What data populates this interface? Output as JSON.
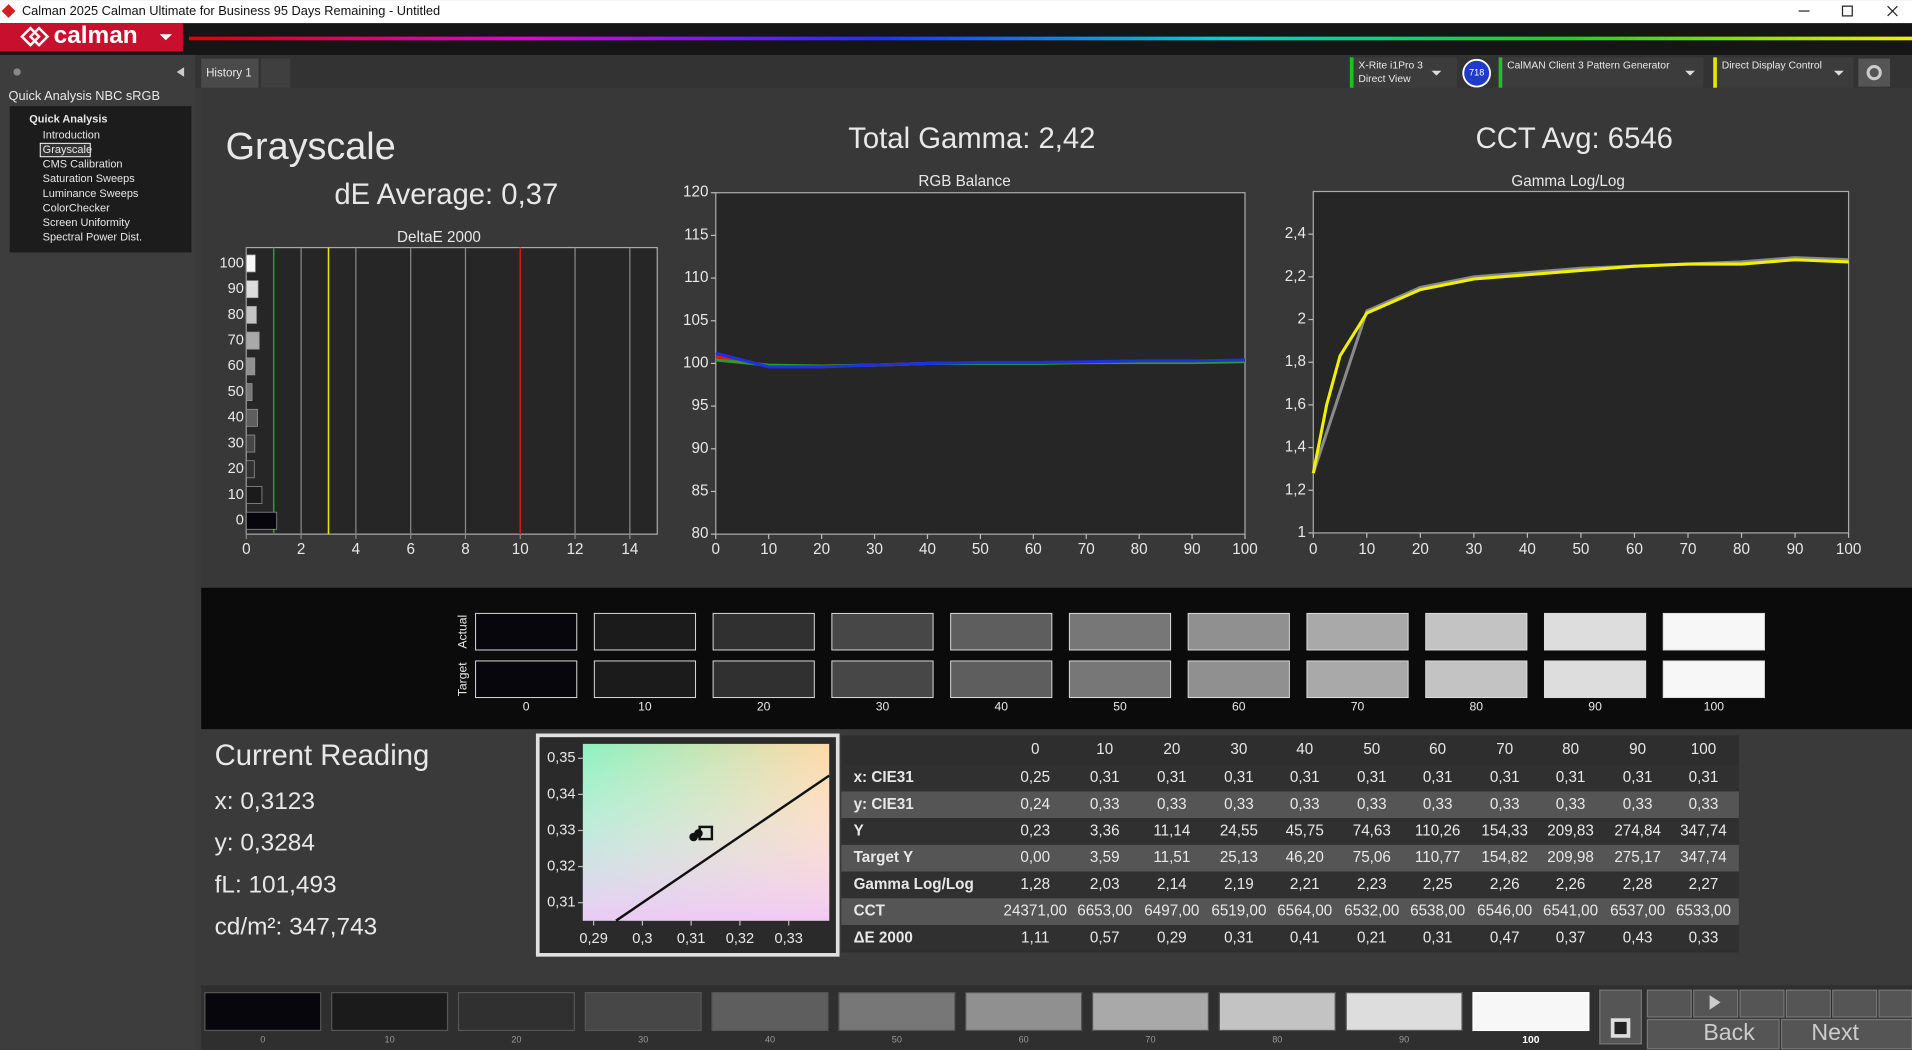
{
  "window": {
    "title": "Calman 2025 Calman Ultimate for Business 95 Days Remaining  - Untitled"
  },
  "toolbar": {
    "logo": "calman",
    "tab": "History 1",
    "meter": [
      "X-Rite i1Pro 3",
      "Direct View"
    ],
    "meter_badge": "718",
    "source": "CalMAN Client 3 Pattern Generator",
    "display": "Direct Display Control"
  },
  "sidebar": {
    "title": "Quick Analysis NBC sRGB",
    "group": "Quick Analysis",
    "items": [
      "Introduction",
      "Grayscale",
      "CMS Calibration",
      "Saturation Sweeps",
      "Luminance Sweeps",
      "ColorChecker",
      "Screen Uniformity",
      "Spectral Power Dist."
    ],
    "selected": 1
  },
  "header": {
    "title": "Grayscale",
    "de_average": "dE Average: 0,37",
    "total_gamma": "Total Gamma: 2,42",
    "cct_avg": "CCT Avg: 6546"
  },
  "charts": {
    "deltae": {
      "type": "hbar",
      "title": "DeltaE 2000",
      "categories": [
        "0",
        "10",
        "20",
        "30",
        "40",
        "50",
        "60",
        "70",
        "80",
        "90",
        "100"
      ],
      "values": [
        1.11,
        0.57,
        0.29,
        0.31,
        0.41,
        0.21,
        0.31,
        0.47,
        0.37,
        0.43,
        0.33
      ],
      "xlim": [
        0,
        15
      ],
      "xticks": [
        0,
        2,
        4,
        6,
        8,
        10,
        12,
        14
      ],
      "grid": true,
      "thresholds": [
        {
          "value": 1,
          "color": "#22a022"
        },
        {
          "value": 3,
          "color": "#e6e600"
        },
        {
          "value": 10,
          "color": "#d01818"
        }
      ]
    },
    "rgb_balance": {
      "type": "line",
      "title": "RGB Balance",
      "x": [
        0,
        10,
        20,
        30,
        40,
        50,
        60,
        70,
        80,
        90,
        100
      ],
      "xlim": [
        0,
        100
      ],
      "ylim": [
        80,
        120
      ],
      "xticks": [
        0,
        10,
        20,
        30,
        40,
        50,
        60,
        70,
        80,
        90,
        100
      ],
      "yticks": [
        80,
        85,
        90,
        95,
        100,
        105,
        110,
        115,
        120
      ],
      "grid": false,
      "series": [
        {
          "name": "Red",
          "color": "#d02020",
          "values": [
            100.8,
            99.7,
            99.7,
            99.8,
            100,
            100,
            100.1,
            100.1,
            100.2,
            100.2,
            100.3
          ]
        },
        {
          "name": "Green",
          "color": "#2a9a2a",
          "values": [
            100.4,
            99.8,
            99.7,
            99.8,
            100,
            100,
            100,
            100.1,
            100.1,
            100.1,
            100.2
          ]
        },
        {
          "name": "Blue",
          "color": "#2030e0",
          "values": [
            101.2,
            99.6,
            99.6,
            99.8,
            100,
            100.1,
            100.1,
            100.2,
            100.3,
            100.3,
            100.4
          ]
        }
      ]
    },
    "gamma": {
      "type": "line",
      "title": "Gamma Log/Log",
      "x": [
        0,
        2.5,
        5,
        10,
        20,
        30,
        40,
        50,
        60,
        70,
        80,
        90,
        100
      ],
      "xlim": [
        0,
        100
      ],
      "ylim": [
        1,
        2.6
      ],
      "xticks": [
        0,
        10,
        20,
        30,
        40,
        50,
        60,
        70,
        80,
        90,
        100
      ],
      "yticks": [
        1,
        {
          "value": 1.2,
          "label": "1,2"
        },
        {
          "value": 1.4,
          "label": "1,4"
        },
        {
          "value": 1.6,
          "label": "1,6"
        },
        {
          "value": 1.8,
          "label": "1,8"
        },
        2,
        {
          "value": 2.2,
          "label": "2,2"
        },
        {
          "value": 2.4,
          "label": "2,4"
        }
      ],
      "grid": false,
      "series": [
        {
          "name": "Target",
          "color": "#8a8a8a",
          "values": [
            1.28,
            1.47,
            1.66,
            2.04,
            2.15,
            2.2,
            2.22,
            2.24,
            2.25,
            2.26,
            2.27,
            2.29,
            2.28
          ]
        },
        {
          "name": "Measured",
          "color": "#f0f000",
          "values": [
            1.28,
            1.6,
            1.83,
            2.03,
            2.14,
            2.19,
            2.21,
            2.23,
            2.25,
            2.26,
            2.26,
            2.28,
            2.27
          ]
        }
      ]
    },
    "cie": {
      "type": "scatter",
      "xlim": [
        0.2878,
        0.3383
      ],
      "ylim": [
        0.305,
        0.354
      ],
      "xticks": [
        {
          "value": 0.29,
          "label": "0,29"
        },
        {
          "value": 0.3,
          "label": "0,3"
        },
        {
          "value": 0.31,
          "label": "0,31"
        },
        {
          "value": 0.32,
          "label": "0,32"
        },
        {
          "value": 0.33,
          "label": "0,33"
        }
      ],
      "yticks": [
        {
          "value": 0.31,
          "label": "0,31"
        },
        {
          "value": 0.32,
          "label": "0,32"
        },
        {
          "value": 0.33,
          "label": "0,33"
        },
        {
          "value": 0.34,
          "label": "0,34"
        },
        {
          "value": 0.35,
          "label": "0,35"
        }
      ],
      "locus": {
        "x": [
          0.2946,
          0.3383
        ],
        "y": [
          0.305,
          0.3452
        ]
      },
      "target": {
        "x": 0.313,
        "y": 0.3293
      },
      "measured": {
        "x": [
          0.3105,
          0.3115
        ],
        "y": [
          0.3282,
          0.3292
        ]
      }
    }
  },
  "swatches": {
    "row_labels": [
      "Actual",
      "Target"
    ],
    "labels": [
      "0",
      "10",
      "20",
      "30",
      "40",
      "50",
      "60",
      "70",
      "80",
      "90",
      "100"
    ],
    "colors": [
      "#06060c",
      "#1b1b1b",
      "#303030",
      "#474747",
      "#5e5e5e",
      "#777777",
      "#909090",
      "#a9a9a9",
      "#c3c3c3",
      "#dddddd",
      "#f7f7f7"
    ]
  },
  "reading": {
    "title": "Current Reading",
    "lines": [
      "x: 0,3123",
      "y: 0,3284",
      "fL: 101,493",
      "cd/m²: 347,743"
    ]
  },
  "table": {
    "columns": [
      "0",
      "10",
      "20",
      "30",
      "40",
      "50",
      "60",
      "70",
      "80",
      "90",
      "100"
    ],
    "rows": [
      {
        "label": "x: CIE31",
        "cells": [
          "0,25",
          "0,31",
          "0,31",
          "0,31",
          "0,31",
          "0,31",
          "0,31",
          "0,31",
          "0,31",
          "0,31",
          "0,31"
        ]
      },
      {
        "label": "y: CIE31",
        "cells": [
          "0,24",
          "0,33",
          "0,33",
          "0,33",
          "0,33",
          "0,33",
          "0,33",
          "0,33",
          "0,33",
          "0,33",
          "0,33"
        ]
      },
      {
        "label": "Y",
        "cells": [
          "0,23",
          "3,36",
          "11,14",
          "24,55",
          "45,75",
          "74,63",
          "110,26",
          "154,33",
          "209,83",
          "274,84",
          "347,74"
        ]
      },
      {
        "label": "Target Y",
        "cells": [
          "0,00",
          "3,59",
          "11,51",
          "25,13",
          "46,20",
          "75,06",
          "110,77",
          "154,82",
          "209,98",
          "275,17",
          "347,74"
        ]
      },
      {
        "label": "Gamma Log/Log",
        "cells": [
          "1,28",
          "2,03",
          "2,14",
          "2,19",
          "2,21",
          "2,23",
          "2,25",
          "2,26",
          "2,26",
          "2,28",
          "2,27"
        ]
      },
      {
        "label": "CCT",
        "cells": [
          "24371,00",
          "6653,00",
          "6497,00",
          "6519,00",
          "6564,00",
          "6532,00",
          "6538,00",
          "6546,00",
          "6541,00",
          "6537,00",
          "6533,00"
        ]
      },
      {
        "label": "ΔE 2000",
        "cells": [
          "1,11",
          "0,57",
          "0,29",
          "0,31",
          "0,41",
          "0,21",
          "0,31",
          "0,47",
          "0,37",
          "0,43",
          "0,33"
        ]
      }
    ]
  },
  "nav": {
    "back": "Back",
    "next": "Next"
  }
}
